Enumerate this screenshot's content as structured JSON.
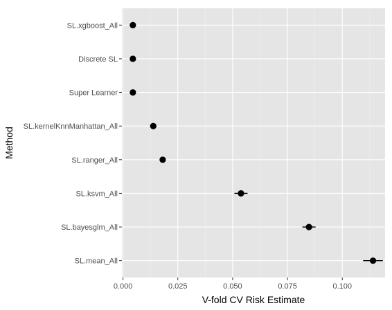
{
  "chart_data": {
    "type": "scatter",
    "xlabel": "V-fold CV Risk Estimate",
    "ylabel": "Method",
    "xlim": [
      -0.0005,
      0.1195
    ],
    "x_ticks": [
      0.0,
      0.025,
      0.05,
      0.075,
      0.1
    ],
    "x_tick_labels": [
      "0.000",
      "0.025",
      "0.050",
      "0.075",
      "0.100"
    ],
    "grid": true,
    "categories": [
      "SL.xgboost_All",
      "Discrete SL",
      "Super Learner",
      "SL.kernelKnnManhattan_All",
      "SL.ranger_All",
      "SL.ksvm_All",
      "SL.bayesglm_All",
      "SL.mean_All"
    ],
    "series": [
      {
        "values": [
          0.0045,
          0.0045,
          0.0045,
          0.0138,
          0.0181,
          0.0538,
          0.0848,
          0.114
        ],
        "lower": [
          0.0039,
          0.0039,
          0.0039,
          0.0128,
          0.0168,
          0.0508,
          0.0818,
          0.1095
        ],
        "upper": [
          0.0051,
          0.0051,
          0.0051,
          0.0148,
          0.0194,
          0.0568,
          0.0878,
          0.1185
        ]
      }
    ],
    "colors": {
      "panel": "#e5e5e5",
      "grid_major": "#ffffff",
      "grid_minor": "#f2f2f2",
      "point": "#000000",
      "tick_text": "#4d4d4d",
      "tick_mark": "#333333"
    }
  }
}
